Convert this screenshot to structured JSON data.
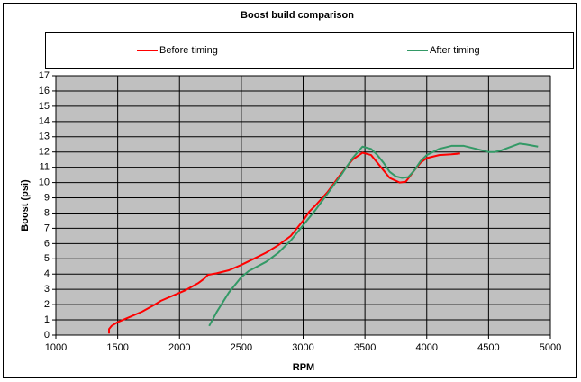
{
  "chart_data": {
    "type": "line",
    "title": "Boost build comparison",
    "x_label": "RPM",
    "y_label": "Boost (psi)",
    "xlim": [
      1000,
      5000
    ],
    "xticks": [
      1000,
      1500,
      2000,
      2500,
      3000,
      3500,
      4000,
      4500,
      5000
    ],
    "ylim": [
      0,
      17
    ],
    "yticks": [
      0,
      1,
      2,
      3,
      4,
      5,
      6,
      7,
      8,
      9,
      10,
      11,
      12,
      13,
      14,
      15,
      16,
      17
    ],
    "grid": true,
    "legend": "top",
    "plot_background": "#c0c0c0",
    "series": [
      {
        "name": "Before timing",
        "color": "#ff0000",
        "x": [
          1430,
          1430,
          1450,
          1500,
          1600,
          1700,
          1800,
          1850,
          1950,
          2050,
          2150,
          2200,
          2230,
          2300,
          2400,
          2500,
          2600,
          2700,
          2800,
          2900,
          3000,
          3050,
          3100,
          3200,
          3300,
          3400,
          3480,
          3550,
          3600,
          3700,
          3780,
          3830,
          3900,
          3950,
          4000,
          4100,
          4200,
          4270
        ],
        "values": [
          0.1,
          0.4,
          0.6,
          0.85,
          1.2,
          1.55,
          2.0,
          2.25,
          2.6,
          2.95,
          3.4,
          3.7,
          3.95,
          4.05,
          4.25,
          4.6,
          5.0,
          5.4,
          5.9,
          6.5,
          7.5,
          8.1,
          8.5,
          9.4,
          10.5,
          11.5,
          11.95,
          11.8,
          11.3,
          10.3,
          10.0,
          10.05,
          10.8,
          11.3,
          11.6,
          11.8,
          11.85,
          11.9
        ]
      },
      {
        "name": "After timing",
        "color": "#339966",
        "x": [
          2240,
          2300,
          2400,
          2500,
          2560,
          2700,
          2800,
          2900,
          3000,
          3100,
          3200,
          3300,
          3400,
          3480,
          3550,
          3600,
          3650,
          3700,
          3750,
          3800,
          3850,
          3900,
          3950,
          4000,
          4100,
          4200,
          4300,
          4400,
          4500,
          4550,
          4600,
          4700,
          4750,
          4800,
          4900
        ],
        "values": [
          0.6,
          1.5,
          2.8,
          3.8,
          4.2,
          4.8,
          5.4,
          6.2,
          7.2,
          8.2,
          9.3,
          10.4,
          11.6,
          12.35,
          12.2,
          11.8,
          11.3,
          10.7,
          10.4,
          10.3,
          10.35,
          10.8,
          11.4,
          11.8,
          12.2,
          12.4,
          12.4,
          12.2,
          12.0,
          12.0,
          12.1,
          12.4,
          12.55,
          12.5,
          12.35
        ]
      }
    ]
  }
}
